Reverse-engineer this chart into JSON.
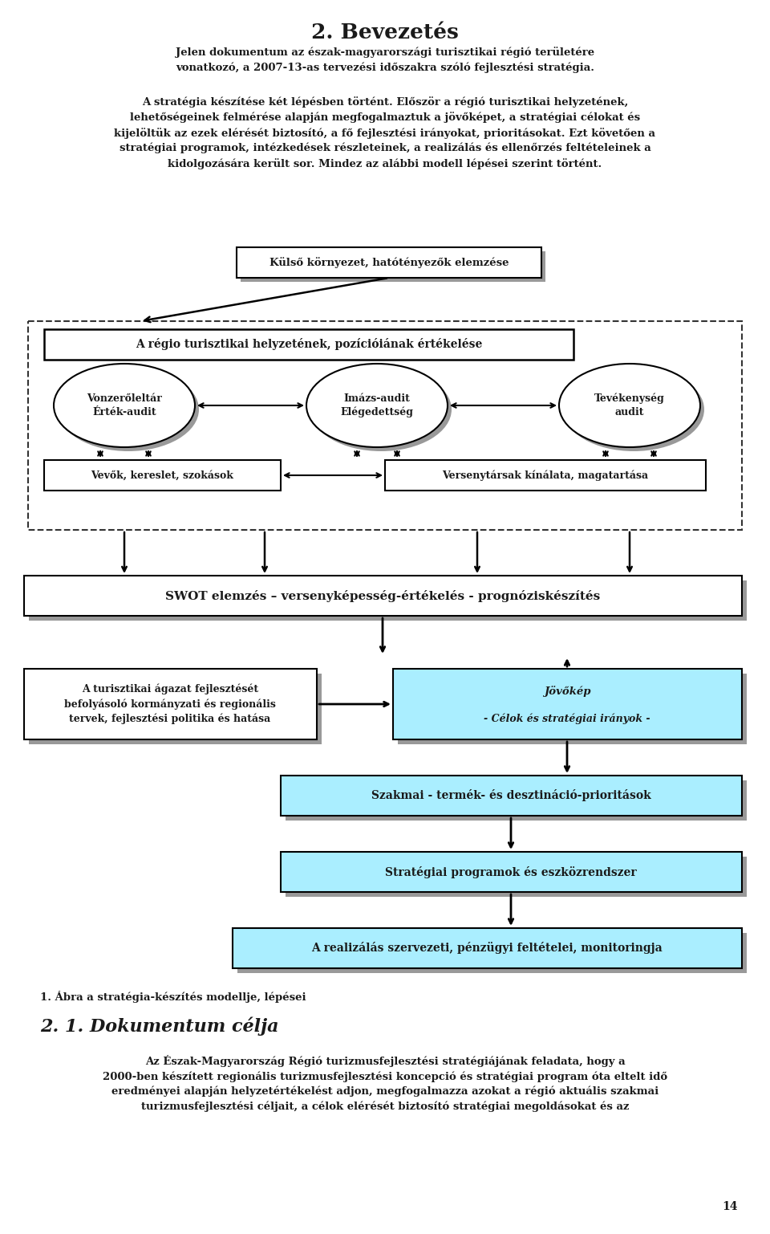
{
  "title": "2. Bevezetés",
  "para1_bold": "Jelen dokumentum az észak-magyarországi turisztikai régió területére\nvonatkozó, a 2007-13-as tervezési időszakra szóló fejlesztési stratégia.",
  "para2": "A stratégia készítése két lépésben történt. Először a régió turisztikai helyzetének,\nlehetőségeinek felmérése alapján megfogalmaztuk a jövőképet, a stratégiai célokat és\nkijelöltük az ezek elérését biztosító, a fő fejlesztési irányokat, prioritásokat. Ezt követően a\nstratégiai programok, intézkedések részleteinek, a realizálás és ellenőrzés feltételeinek a\nkidolgozására került sor. Mindez az alábbi modell lépései szerint történt.",
  "box_kulso": "Külső környezet, hatótényezők elemzése",
  "box_regio": "A régio turisztikai helyzetének, pozícióiának értékelése",
  "ellipse1": "Vonzerőleltár\nÉrték-audit",
  "ellipse2": "Imázs-audit\nElégedettség",
  "ellipse3": "Tevékenység\naudit",
  "box_vevok": "Vevők, kereslet, szokások",
  "box_verseny": "Versenytársak kínálata, magatartása",
  "box_swot": "SWOT elemzés – versenyképesség-értékelés - prognóziskészítés",
  "box_turizmus": "A turisztikai ágazat fejlesztését\nbefolyásoló kormányzati és regionális\ntervek, fejlesztési politika és hatása",
  "box_jovokep_line1": "Jövőkép",
  "box_jovokep_line2": "- Célok és stratégiai irányok -",
  "box_szakmai": "Szakmai - termék- és desztináció-prioritások",
  "box_strategiai": "Stratégiai programok és eszközrendszer",
  "box_realizalas": "A realizálás szervezeti, pénzügyi feltételei, monitoringja",
  "caption": "1. Ábra a stratégia-készítés modellje, lépései",
  "section_title": "2. 1. Dokumentum célja",
  "para3": "Az Észak-Magyarország Régió turizmusfejlesztési stratégiájának feladata, hogy a\n2000-ben készített regionális turizmusfejlesztési koncepció és stratégiai program óta eltelt idő\neredményei alapján helyzetértékelést adjon, megfogalmazza azokat a régió aktuális szakmai\nturizmusfejlesztési céljait, a célok elérését biztosító stratégiai megoldásokat és az",
  "pagenum": "14",
  "bg_color": "#ffffff",
  "text_color": "#1a1a1a",
  "box_fill_white": "#ffffff",
  "box_fill_cyan": "#aaeeff",
  "shadow_color": "#999999",
  "arrow_color": "#1a1a1a",
  "dashed_color": "#333333"
}
